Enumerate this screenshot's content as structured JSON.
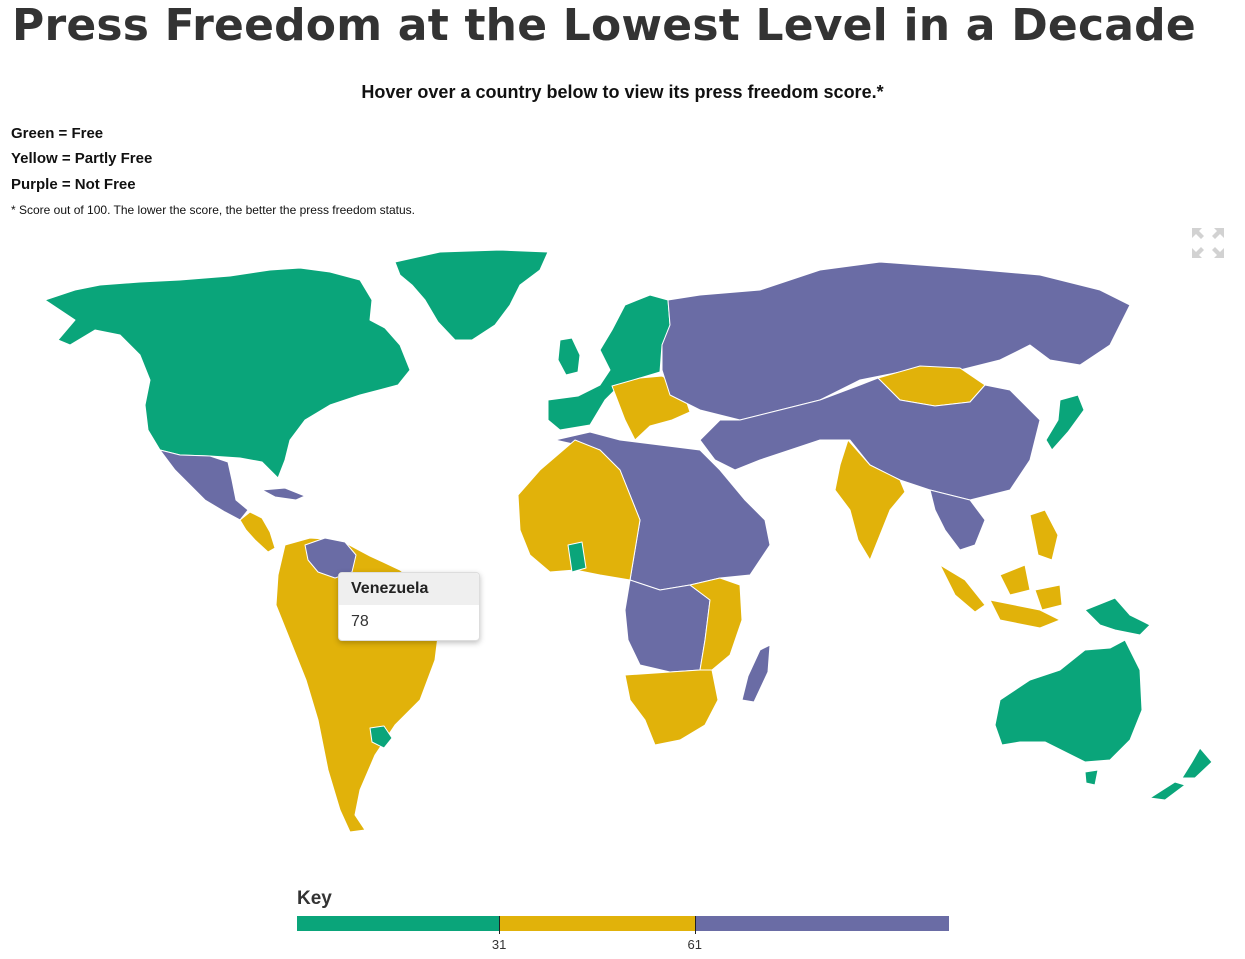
{
  "page": {
    "title": "Press Freedom at the Lowest Level in a Decade",
    "subtitle": "Hover over a country below to view its press freedom score.*",
    "legend": [
      "Green = Free",
      "Yellow = Partly Free",
      "Purple = Not Free"
    ],
    "footnote": "* Score out of 100. The lower the score, the better the press freedom status.",
    "fullscreen_icon": "fullscreen-expand-icon"
  },
  "colors": {
    "free": "#0aa57a",
    "partly_free": "#e1b20a",
    "not_free": "#6a6ca5",
    "no_data": "#d9d9d9",
    "border": "#ffffff"
  },
  "tooltip": {
    "country": "Venezuela",
    "score": "78"
  },
  "key": {
    "title": "Key",
    "min": 0,
    "max": 100,
    "thresholds": [
      31,
      61
    ],
    "tick_labels": [
      "31",
      "61"
    ]
  },
  "map_regions": [
    {
      "name": "North America",
      "status": "free"
    },
    {
      "name": "Greenland",
      "status": "free"
    },
    {
      "name": "Mexico",
      "status": "not_free"
    },
    {
      "name": "Central America",
      "status": "partly_free"
    },
    {
      "name": "Cuba",
      "status": "not_free"
    },
    {
      "name": "Venezuela",
      "status": "not_free"
    },
    {
      "name": "South America",
      "status": "partly_free"
    },
    {
      "name": "Uruguay",
      "status": "free"
    },
    {
      "name": "Western Europe",
      "status": "free"
    },
    {
      "name": "Balkans",
      "status": "partly_free"
    },
    {
      "name": "Russia",
      "status": "not_free"
    },
    {
      "name": "Mongolia",
      "status": "partly_free"
    },
    {
      "name": "China",
      "status": "not_free"
    },
    {
      "name": "India",
      "status": "partly_free"
    },
    {
      "name": "Japan",
      "status": "free"
    },
    {
      "name": "North Africa",
      "status": "not_free"
    },
    {
      "name": "West Africa",
      "status": "partly_free"
    },
    {
      "name": "Ghana",
      "status": "free"
    },
    {
      "name": "Central Africa",
      "status": "not_free"
    },
    {
      "name": "East Africa",
      "status": "partly_free"
    },
    {
      "name": "Southern Africa",
      "status": "partly_free"
    },
    {
      "name": "Madagascar",
      "status": "not_free"
    },
    {
      "name": "Southeast Asia",
      "status": "not_free"
    },
    {
      "name": "Indonesia",
      "status": "partly_free"
    },
    {
      "name": "Philippines",
      "status": "partly_free"
    },
    {
      "name": "Papua New Guinea",
      "status": "free"
    },
    {
      "name": "Australia",
      "status": "free"
    },
    {
      "name": "New Zealand",
      "status": "free"
    }
  ]
}
